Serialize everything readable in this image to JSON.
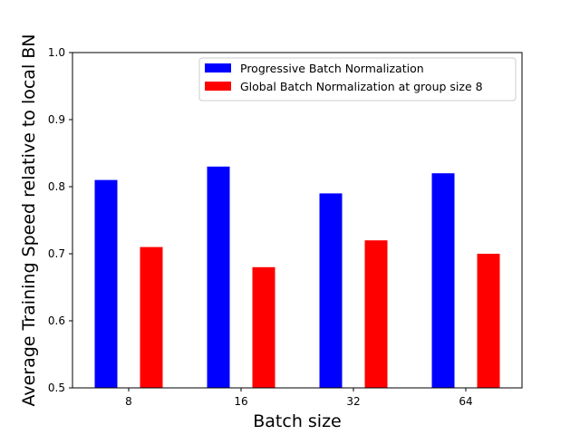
{
  "chart_data": {
    "type": "bar",
    "title": "",
    "xlabel": "Batch size",
    "ylabel": "Average Training Speed relative to local BN",
    "categories": [
      "8",
      "16",
      "32",
      "64"
    ],
    "series": [
      {
        "name": "Progressive Batch Normalization",
        "values": [
          0.81,
          0.83,
          0.79,
          0.82
        ],
        "color": "#0000ff"
      },
      {
        "name": "Global Batch Normalization at group size 8",
        "values": [
          0.71,
          0.68,
          0.72,
          0.7
        ],
        "color": "#ff0000"
      }
    ],
    "ylim": [
      0.5,
      1.0
    ],
    "yticks": [
      0.5,
      0.6,
      0.7,
      0.8,
      0.9,
      1.0
    ],
    "grid": false,
    "legend_position": "top-right"
  }
}
